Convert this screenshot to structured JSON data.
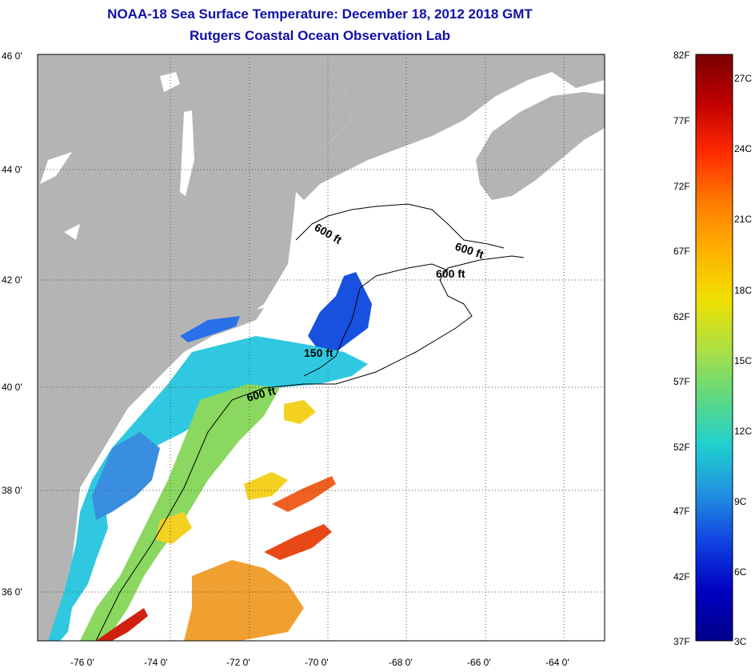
{
  "header": {
    "title": "NOAA-18 Sea Surface Temperature:  December 18, 2012 2018 GMT",
    "subtitle": "Rutgers Coastal Ocean Observation Lab"
  },
  "map": {
    "lat_labels": [
      "46 0'",
      "44 0'",
      "42 0'",
      "40 0'",
      "38 0'",
      "36 0'"
    ],
    "lon_labels": [
      "-76 0'",
      "-74 0'",
      "-72 0'",
      "-70 0'",
      "-68 0'",
      "-66 0'",
      "-64 0'"
    ],
    "contour_labels": [
      "600 ft",
      "600 ft",
      "600 ft",
      "150 ft",
      "600 ft"
    ],
    "colors": {
      "land": "#b4b4b4",
      "ocean": "#ffffff",
      "grid": "#555555"
    }
  },
  "colorbar": {
    "fahrenheit": [
      "82F",
      "77F",
      "72F",
      "67F",
      "62F",
      "57F",
      "52F",
      "47F",
      "42F",
      "37F"
    ],
    "celsius": [
      "27C",
      "24C",
      "21C",
      "18C",
      "15C",
      "12C",
      "9C",
      "6C",
      "3C"
    ],
    "gradient": [
      "#7a0000",
      "#c00000",
      "#ff2a00",
      "#ff7a00",
      "#ffb000",
      "#f0e000",
      "#b0e040",
      "#60d880",
      "#20d0d0",
      "#2090e0",
      "#1040e0",
      "#0000c0",
      "#00008a"
    ]
  }
}
